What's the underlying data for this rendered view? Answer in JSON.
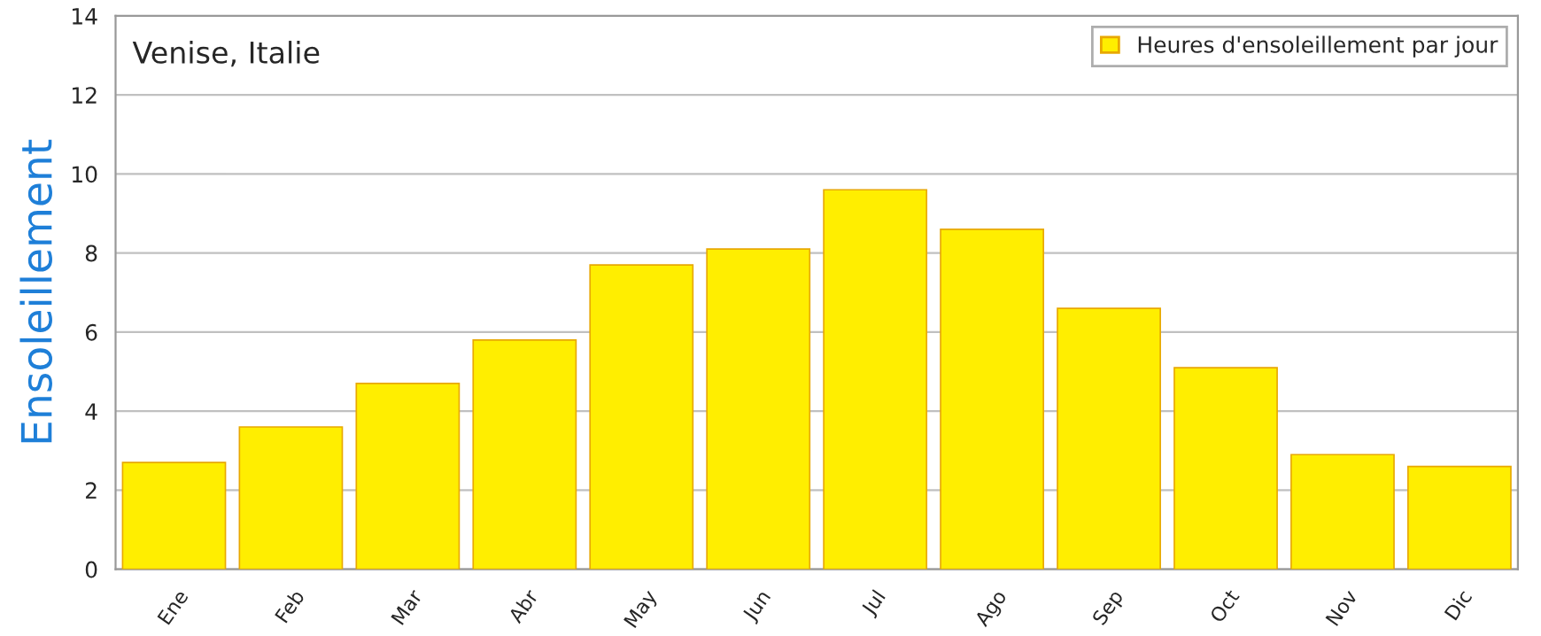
{
  "chart_data": {
    "type": "bar",
    "title": "Venise, Italie",
    "ylabel": "Ensoleillement",
    "categories": [
      "Ene",
      "Feb",
      "Mar",
      "Abr",
      "May",
      "Jun",
      "Jul",
      "Ago",
      "Sep",
      "Oct",
      "Nov",
      "Dic"
    ],
    "series": [
      {
        "name": "Heures d'ensoleillement par jour",
        "color": "#ffee00",
        "values": [
          2.7,
          3.6,
          4.7,
          5.8,
          7.7,
          8.1,
          9.6,
          8.6,
          6.6,
          5.1,
          2.9,
          2.6
        ]
      }
    ],
    "ylim": [
      0,
      14
    ],
    "yticks": [
      0,
      2,
      4,
      6,
      8,
      10,
      12,
      14
    ],
    "grid": "y",
    "legend": "top right"
  }
}
